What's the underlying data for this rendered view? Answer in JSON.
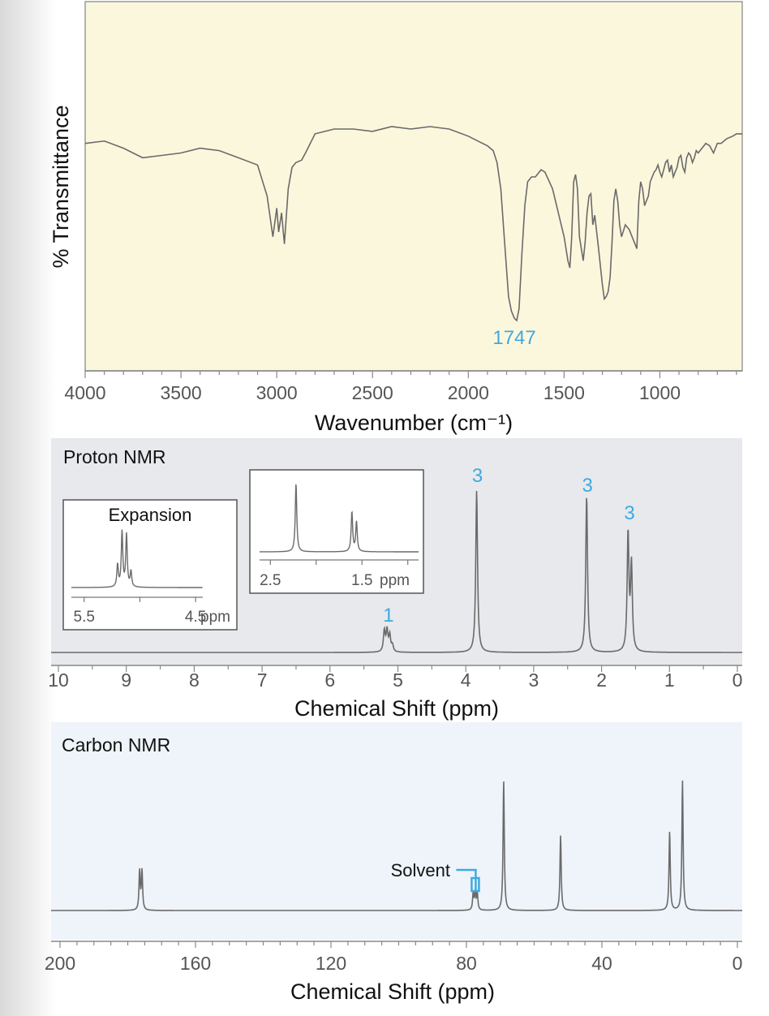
{
  "colors": {
    "ir_bg": "#fbf7dd",
    "h_bg": "#e7e9ec",
    "c_bg": "#eef4fa",
    "trace": "#6a6a6a",
    "accent": "#3fa9e0"
  },
  "chart_data": [
    {
      "type": "line",
      "title": "",
      "xlabel": "Wavenumber (cm⁻¹)",
      "ylabel": "% Transmittance",
      "xlim": [
        4000,
        570
      ],
      "reversed_x": true,
      "x_ticks": [
        "4000",
        "3500",
        "3000",
        "2500",
        "2000",
        "1500",
        "1000"
      ],
      "annotations": [
        {
          "x": 1747,
          "label": "1747"
        }
      ],
      "series": [
        {
          "x": [
            4000,
            3900,
            3800,
            3700,
            3600,
            3500,
            3400,
            3300,
            3200,
            3100,
            3050,
            3020,
            3000,
            2990,
            2975,
            2960,
            2940,
            2920,
            2900,
            2870,
            2850,
            2800,
            2700,
            2600,
            2500,
            2400,
            2300,
            2200,
            2100,
            2000,
            1950,
            1900,
            1870,
            1850,
            1830,
            1810,
            1790,
            1775,
            1760,
            1747,
            1735,
            1720,
            1705,
            1690,
            1670,
            1650,
            1620,
            1600,
            1560,
            1530,
            1500,
            1480,
            1470,
            1460,
            1450,
            1440,
            1430,
            1420,
            1400,
            1390,
            1380,
            1370,
            1360,
            1350,
            1340,
            1320,
            1300,
            1290,
            1280,
            1270,
            1260,
            1250,
            1240,
            1230,
            1220,
            1210,
            1200,
            1180,
            1160,
            1140,
            1130,
            1120,
            1110,
            1100,
            1090,
            1080,
            1070,
            1060,
            1050,
            1040,
            1030,
            1020,
            1010,
            1000,
            990,
            980,
            970,
            960,
            950,
            940,
            930,
            920,
            910,
            900,
            890,
            880,
            870,
            860,
            850,
            840,
            830,
            820,
            810,
            800,
            780,
            760,
            740,
            720,
            700,
            680,
            650,
            620,
            600,
            570
          ],
          "y": [
            74,
            75,
            72,
            68,
            69,
            70,
            72,
            71,
            68,
            65,
            52,
            35,
            47,
            37,
            45,
            32,
            55,
            64,
            66,
            67,
            70,
            78,
            80,
            80,
            79,
            81,
            80,
            81,
            80,
            77,
            75,
            73,
            71,
            66,
            55,
            32,
            10,
            4,
            1,
            0,
            5,
            28,
            48,
            58,
            60,
            60,
            63,
            62,
            55,
            45,
            35,
            25,
            22,
            35,
            58,
            61,
            55,
            35,
            25,
            33,
            45,
            52,
            53,
            40,
            44,
            30,
            15,
            9,
            10,
            12,
            18,
            32,
            50,
            55,
            50,
            40,
            35,
            40,
            38,
            34,
            32,
            30,
            50,
            58,
            55,
            48,
            50,
            52,
            58,
            60,
            62,
            63,
            65,
            62,
            60,
            63,
            66,
            67,
            62,
            65,
            60,
            62,
            64,
            68,
            69,
            64,
            62,
            68,
            70,
            69,
            66,
            68,
            71,
            70,
            72,
            74,
            73,
            70,
            74,
            74,
            76,
            77,
            78,
            78
          ]
        }
      ]
    },
    {
      "type": "line",
      "title": "Proton NMR",
      "xlabel": "Chemical Shift (ppm)",
      "xlim": [
        10,
        0
      ],
      "reversed_x": true,
      "x_ticks": [
        "10",
        "9",
        "8",
        "7",
        "6",
        "5",
        "4",
        "3",
        "2",
        "1",
        "0"
      ],
      "integrations": [
        {
          "ppm": 5.15,
          "label": "1"
        },
        {
          "ppm": 3.84,
          "label": "3"
        },
        {
          "ppm": 2.22,
          "label": "3"
        },
        {
          "ppm": 1.6,
          "label": "3"
        }
      ],
      "peaks": [
        {
          "ppm": 5.2,
          "height": 13
        },
        {
          "ppm": 5.16,
          "height": 13
        },
        {
          "ppm": 5.12,
          "height": 10
        },
        {
          "ppm": 5.08,
          "height": 4
        },
        {
          "ppm": 3.84,
          "height": 100
        },
        {
          "ppm": 2.22,
          "height": 97
        },
        {
          "ppm": 1.61,
          "height": 73
        },
        {
          "ppm": 1.56,
          "height": 53
        }
      ],
      "insets": [
        {
          "title": "Expansion",
          "xlim": [
            5.6,
            4.45
          ],
          "tick_labels": [
            "5.5",
            "4.5"
          ],
          "unit": "ppm",
          "peaks": [
            {
              "ppm": 5.2,
              "height": 40
            },
            {
              "ppm": 5.16,
              "height": 100
            },
            {
              "ppm": 5.12,
              "height": 95
            },
            {
              "ppm": 5.08,
              "height": 28
            }
          ]
        },
        {
          "title": "",
          "xlim": [
            2.6,
            0.9
          ],
          "tick_labels": [
            "2.5",
            "1.5"
          ],
          "unit": "ppm",
          "peaks": [
            {
              "ppm": 2.22,
              "height": 100
            },
            {
              "ppm": 1.61,
              "height": 58
            },
            {
              "ppm": 1.56,
              "height": 44
            }
          ]
        }
      ]
    },
    {
      "type": "line",
      "title": "Carbon NMR",
      "xlabel": "Chemical Shift (ppm)",
      "xlim": [
        200,
        0
      ],
      "reversed_x": true,
      "x_ticks": [
        "200",
        "160",
        "120",
        "80",
        "40",
        "0"
      ],
      "annotations": [
        {
          "ppm": 77.5,
          "label": "Solvent"
        }
      ],
      "peaks": [
        {
          "ppm": 176.5,
          "height": 30
        },
        {
          "ppm": 175.8,
          "height": 30
        },
        {
          "ppm": 78.0,
          "height": 13
        },
        {
          "ppm": 77.4,
          "height": 13
        },
        {
          "ppm": 76.8,
          "height": 13
        },
        {
          "ppm": 69.0,
          "height": 100
        },
        {
          "ppm": 52.2,
          "height": 58
        },
        {
          "ppm": 20.0,
          "height": 61
        },
        {
          "ppm": 16.2,
          "height": 100
        }
      ]
    }
  ]
}
